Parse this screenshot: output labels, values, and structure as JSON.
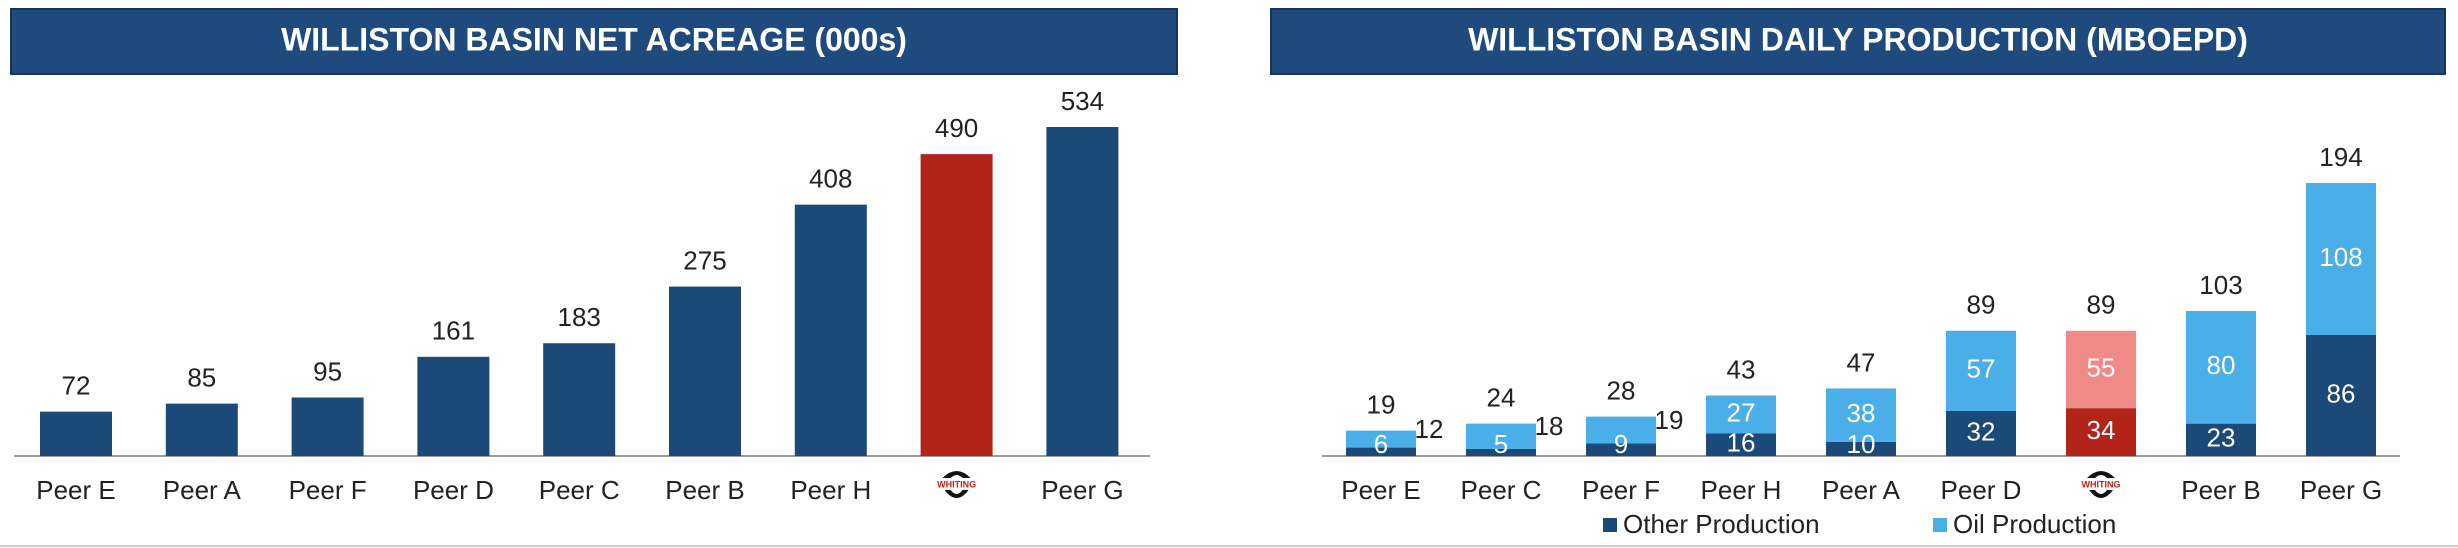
{
  "chart_data": [
    {
      "type": "bar",
      "title": "WILLISTON BASIN NET ACREAGE (000s)",
      "categories": [
        "Peer E",
        "Peer A",
        "Peer F",
        "Peer D",
        "Peer C",
        "Peer B",
        "Peer H",
        "WHITING",
        "Peer G"
      ],
      "values": [
        72,
        85,
        95,
        161,
        183,
        275,
        408,
        490,
        534
      ],
      "colors": [
        "#1b4978",
        "#1b4978",
        "#1b4978",
        "#1b4978",
        "#1b4978",
        "#1b4978",
        "#1b4978",
        "#b2231a",
        "#1b4978"
      ]
    },
    {
      "type": "stacked_bar",
      "title": "WILLISTON BASIN DAILY PRODUCTION (MBOEPD)",
      "categories": [
        "Peer E",
        "Peer C",
        "Peer F",
        "Peer H",
        "Peer A",
        "Peer D",
        "WHITING",
        "Peer B",
        "Peer G"
      ],
      "series": [
        {
          "name": "Other Production",
          "color": "#1b4978",
          "values": [
            6,
            5,
            9,
            16,
            10,
            32,
            34,
            23,
            86
          ],
          "colors": [
            "#1b4978",
            "#1b4978",
            "#1b4978",
            "#1b4978",
            "#1b4978",
            "#1b4978",
            "#b2231a",
            "#1b4978",
            "#1b4978"
          ]
        },
        {
          "name": "Oil Production",
          "color": "#4aaee8",
          "values": [
            12,
            18,
            19,
            27,
            38,
            57,
            55,
            80,
            108
          ],
          "colors": [
            "#4aaee8",
            "#4aaee8",
            "#4aaee8",
            "#4aaee8",
            "#4aaee8",
            "#4aaee8",
            "#f08a86",
            "#4aaee8",
            "#4aaee8"
          ]
        }
      ],
      "totals": [
        19,
        24,
        28,
        43,
        47,
        89,
        89,
        103,
        194
      ]
    }
  ]
}
